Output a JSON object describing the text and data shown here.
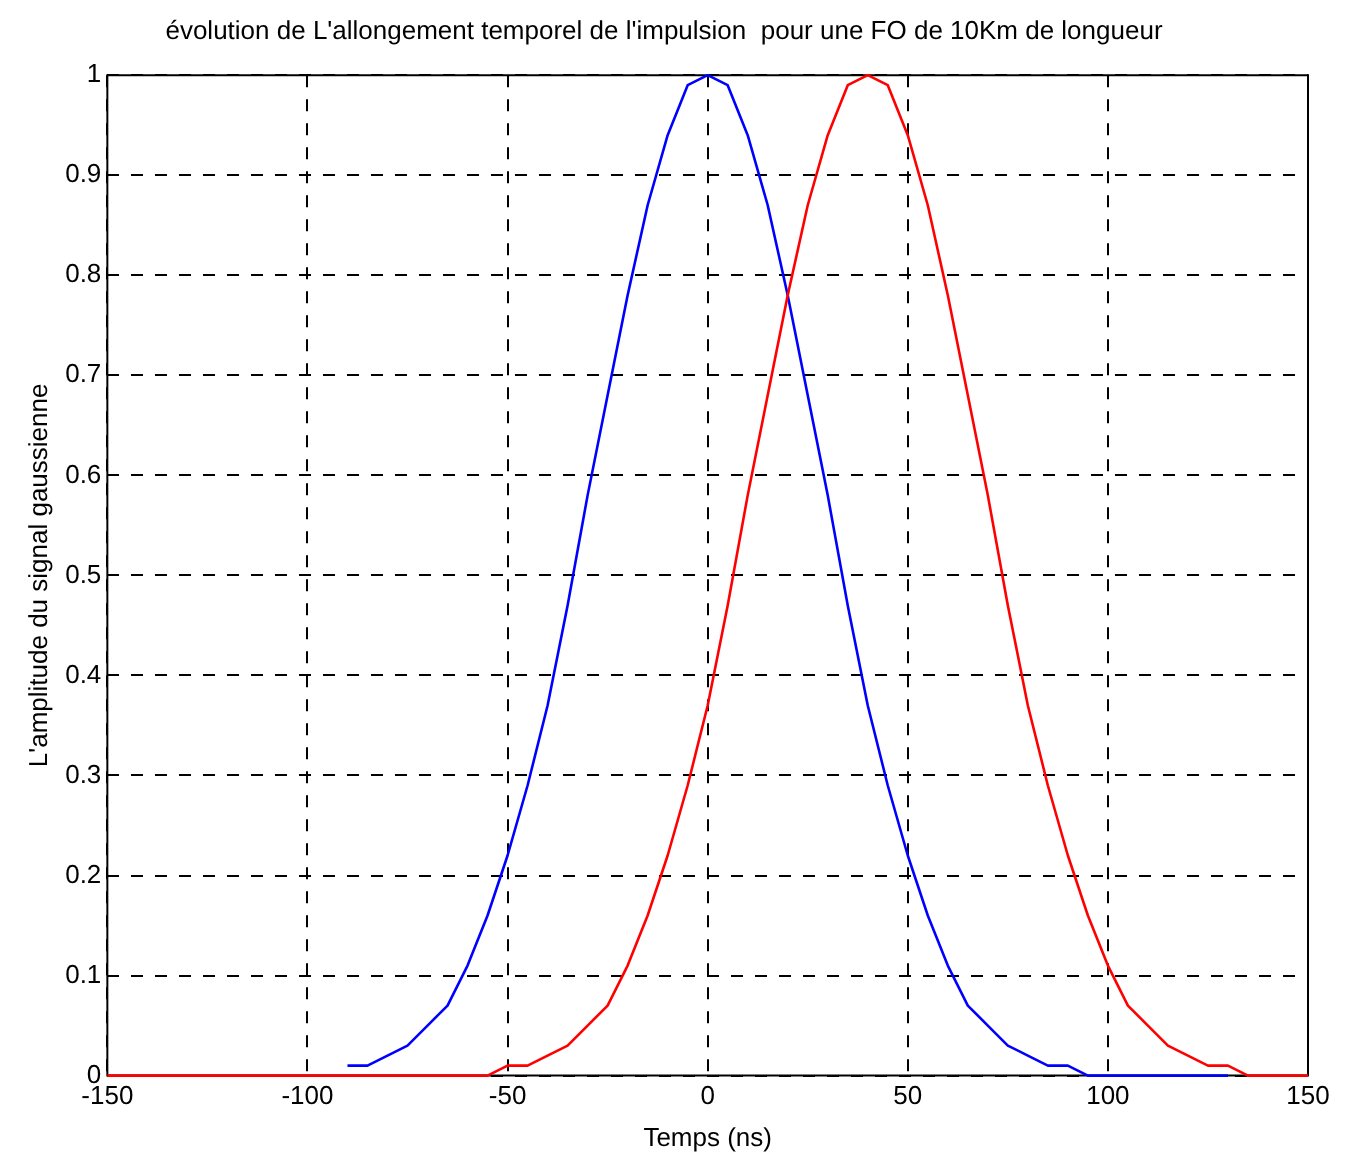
{
  "chart_data": {
    "type": "line",
    "title": "évolution de L'allongement temporel de l'impulsion  pour une FO de 10Km de longueur",
    "xlabel": "Temps (ns)",
    "ylabel": "L'amplitude du signal gaussienne",
    "x": [
      -150,
      -145,
      -140,
      -135,
      -130,
      -125,
      -120,
      -115,
      -110,
      -105,
      -100,
      -95,
      -90,
      -85,
      -80,
      -75,
      -70,
      -65,
      -60,
      -55,
      -50,
      -45,
      -40,
      -35,
      -30,
      -25,
      -20,
      -15,
      -10,
      -5,
      0,
      5,
      10,
      15,
      20,
      25,
      30,
      35,
      40,
      45,
      50,
      55,
      60,
      65,
      70,
      75,
      80,
      85,
      90,
      95,
      100,
      105,
      110,
      115,
      120,
      125,
      130,
      135,
      140,
      145,
      150
    ],
    "series": [
      {
        "color": "#0000ff",
        "values": [
          null,
          null,
          null,
          null,
          null,
          null,
          null,
          null,
          null,
          null,
          null,
          null,
          0.01,
          0.01,
          0.02,
          0.03,
          0.05,
          0.07,
          0.11,
          0.16,
          0.22,
          0.29,
          0.37,
          0.47,
          0.58,
          0.68,
          0.78,
          0.87,
          0.94,
          0.99,
          1,
          0.99,
          0.94,
          0.87,
          0.78,
          0.68,
          0.58,
          0.47,
          0.37,
          0.29,
          0.22,
          0.16,
          0.11,
          0.07,
          0.05,
          0.03,
          0.02,
          0.01,
          0.01,
          0,
          0,
          0,
          0,
          0,
          0,
          0,
          0,
          null,
          null,
          null,
          null
        ]
      },
      {
        "color": "#ff0000",
        "values": [
          0,
          0,
          0,
          0,
          0,
          0,
          0,
          0,
          0,
          0,
          0,
          0,
          0,
          0,
          0,
          0,
          0,
          0,
          0,
          0,
          0.01,
          0.01,
          0.02,
          0.03,
          0.05,
          0.07,
          0.11,
          0.16,
          0.22,
          0.29,
          0.37,
          0.47,
          0.58,
          0.68,
          0.78,
          0.87,
          0.94,
          0.99,
          1,
          0.99,
          0.94,
          0.87,
          0.78,
          0.68,
          0.58,
          0.47,
          0.37,
          0.29,
          0.22,
          0.16,
          0.11,
          0.07,
          0.05,
          0.03,
          0.02,
          0.01,
          0.01,
          0,
          0,
          0,
          0
        ]
      }
    ],
    "xlim": [
      -150,
      150
    ],
    "xticks": [
      -150,
      -100,
      -50,
      0,
      50,
      100,
      150
    ],
    "ylim": [
      0,
      1
    ],
    "yticks": [
      0,
      0.1,
      0.2,
      0.3,
      0.4,
      0.5,
      0.6,
      0.7,
      0.8,
      0.9,
      1
    ],
    "grid": true,
    "legend": false,
    "marker": "none",
    "line_style": "solid"
  }
}
